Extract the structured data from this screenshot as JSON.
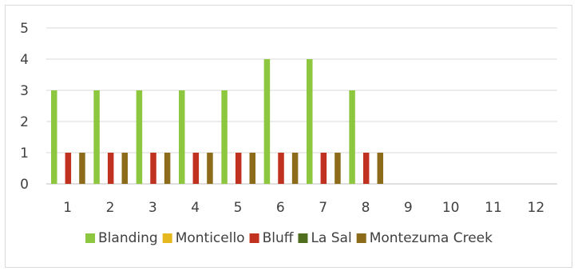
{
  "chart_data": {
    "type": "bar",
    "title": "",
    "xlabel": "",
    "ylabel": "",
    "ylim": [
      0,
      5
    ],
    "yticks": [
      0,
      1,
      2,
      3,
      4,
      5
    ],
    "grid": "horizontal",
    "legend_position": "bottom",
    "categories": [
      "1",
      "2",
      "3",
      "4",
      "5",
      "6",
      "7",
      "8",
      "9",
      "10",
      "11",
      "12"
    ],
    "series": [
      {
        "name": "Blanding",
        "color": "#8dc63f",
        "values": [
          3,
          3,
          3,
          3,
          3,
          4,
          4,
          3,
          null,
          null,
          null,
          null
        ]
      },
      {
        "name": "Monticello",
        "color": "#e6b820",
        "values": [
          null,
          null,
          null,
          null,
          null,
          null,
          null,
          null,
          null,
          null,
          null,
          null
        ]
      },
      {
        "name": "Bluff",
        "color": "#c0311f",
        "values": [
          1,
          1,
          1,
          1,
          1,
          1,
          1,
          1,
          null,
          null,
          null,
          null
        ]
      },
      {
        "name": "La Sal",
        "color": "#4f6f1e",
        "values": [
          null,
          null,
          null,
          null,
          null,
          null,
          null,
          null,
          null,
          null,
          null,
          null
        ]
      },
      {
        "name": "Montezuma Creek",
        "color": "#8c6b1a",
        "values": [
          1,
          1,
          1,
          1,
          1,
          1,
          1,
          1,
          null,
          null,
          null,
          null
        ]
      }
    ],
    "colors": {
      "gridline": "#d9d9d9",
      "axis": "#bfbfbf",
      "text": "#404040"
    }
  }
}
